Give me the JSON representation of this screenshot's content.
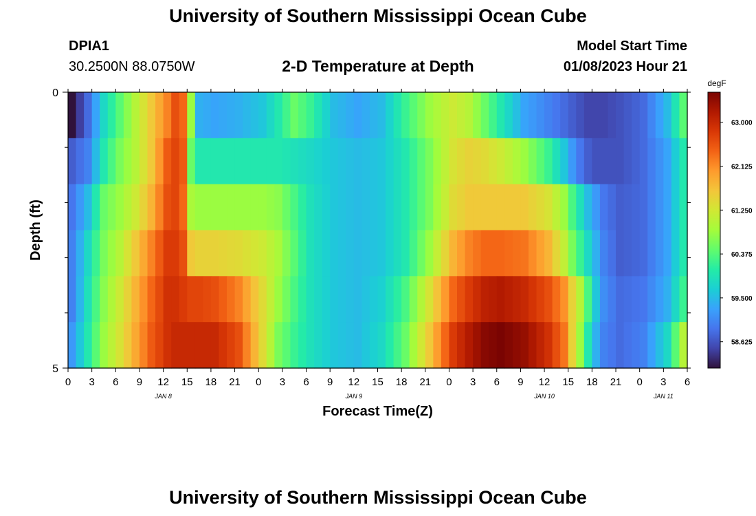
{
  "header": {
    "title": "University of Southern Mississippi Ocean Cube",
    "station_id": "DPIA1",
    "station_coords": "30.2500N  88.0750W",
    "subtitle": "2-D Temperature at Depth",
    "start_label": "Model Start Time",
    "start_value": "01/08/2023 Hour 21"
  },
  "footer": {
    "title": "University of Southern Mississippi Ocean Cube"
  },
  "chart_data": {
    "type": "heatmap",
    "title": "2-D Temperature at Depth",
    "xlabel": "Forecast Time(Z)",
    "ylabel": "Depth (ft)",
    "units": "degF",
    "x_tick_labels": [
      "0",
      "3",
      "6",
      "9",
      "12",
      "15",
      "18",
      "21",
      "0",
      "3",
      "6",
      "9",
      "12",
      "15",
      "18",
      "21",
      "0",
      "3",
      "6",
      "9",
      "12",
      "15",
      "18",
      "21",
      "0",
      "3",
      "6"
    ],
    "day_labels": [
      {
        "label": "JAN 8",
        "hour_index": 12
      },
      {
        "label": "JAN 9",
        "hour_index": 36
      },
      {
        "label": "JAN 10",
        "hour_index": 60
      },
      {
        "label": "JAN 11",
        "hour_index": 75
      }
    ],
    "y_tick_labels": [
      "0",
      "5"
    ],
    "depth_range": [
      0,
      5
    ],
    "depth_rows": [
      0,
      1,
      2,
      3,
      4,
      5
    ],
    "hours": 78,
    "colorbar": {
      "min": 58.1,
      "max": 63.6,
      "labels": [
        "63.000",
        "62.125",
        "61.250",
        "60.375",
        "59.500",
        "58.625"
      ],
      "values": [
        63.0,
        62.125,
        61.25,
        60.375,
        59.5,
        58.625
      ]
    },
    "keypoints": {
      "hours": [
        0,
        2,
        4,
        6,
        8,
        10,
        12,
        13,
        14,
        15,
        16,
        18,
        21,
        24,
        26,
        28,
        30,
        33,
        36,
        39,
        42,
        45,
        48,
        50,
        52,
        54,
        57,
        60,
        62,
        63,
        64,
        65,
        66,
        67,
        69,
        72,
        75,
        77
      ],
      "rows": [
        [
          58.1,
          58.8,
          59.8,
          60.4,
          61.0,
          61.6,
          62.2,
          62.6,
          62.4,
          60.8,
          59.4,
          59.3,
          59.4,
          59.6,
          60.0,
          60.5,
          60.2,
          59.5,
          59.3,
          59.5,
          60.2,
          60.8,
          61.2,
          61.0,
          60.5,
          60.0,
          59.3,
          59.0,
          58.8,
          58.7,
          58.6,
          58.5,
          58.5,
          58.5,
          58.6,
          58.8,
          59.5,
          60.4
        ],
        [
          58.7,
          59.0,
          60.0,
          60.6,
          61.0,
          61.6,
          62.5,
          62.7,
          62.5,
          60.5,
          60.0,
          60.0,
          60.0,
          60.0,
          60.0,
          59.9,
          59.8,
          59.6,
          59.5,
          59.6,
          60.0,
          60.6,
          61.3,
          61.5,
          61.4,
          61.2,
          60.8,
          60.2,
          59.6,
          59.2,
          58.9,
          58.7,
          58.6,
          58.6,
          58.6,
          58.8,
          59.3,
          60.0
        ],
        [
          58.9,
          59.5,
          60.5,
          60.8,
          61.2,
          61.8,
          62.6,
          62.7,
          62.4,
          60.9,
          60.8,
          60.8,
          60.8,
          60.8,
          60.7,
          60.3,
          59.9,
          59.6,
          59.5,
          59.6,
          60.0,
          60.6,
          61.4,
          61.6,
          61.6,
          61.6,
          61.6,
          61.3,
          60.8,
          60.3,
          59.9,
          59.5,
          59.2,
          58.9,
          58.7,
          58.8,
          59.3,
          60.0
        ],
        [
          59.0,
          59.8,
          60.6,
          61.0,
          61.6,
          62.2,
          62.8,
          62.8,
          62.6,
          61.6,
          61.5,
          61.5,
          61.4,
          61.2,
          60.9,
          60.4,
          59.9,
          59.6,
          59.5,
          59.6,
          60.0,
          60.8,
          61.8,
          62.2,
          62.4,
          62.4,
          62.3,
          61.8,
          61.1,
          60.6,
          60.2,
          59.8,
          59.4,
          59.0,
          58.7,
          58.8,
          59.3,
          60.0
        ],
        [
          59.0,
          59.9,
          60.7,
          61.2,
          61.8,
          62.4,
          62.9,
          62.9,
          62.8,
          62.7,
          62.7,
          62.6,
          62.2,
          61.4,
          60.8,
          60.3,
          59.9,
          59.6,
          59.5,
          59.7,
          60.3,
          61.3,
          62.4,
          62.8,
          63.1,
          63.2,
          63.0,
          62.6,
          62.1,
          61.5,
          61.0,
          60.3,
          59.6,
          59.1,
          58.8,
          58.9,
          59.4,
          60.2
        ],
        [
          59.2,
          60.0,
          60.8,
          61.3,
          61.9,
          62.5,
          62.9,
          63.0,
          63.0,
          63.0,
          63.0,
          63.0,
          62.6,
          61.4,
          60.6,
          60.2,
          59.9,
          59.6,
          59.5,
          59.8,
          60.5,
          61.6,
          62.8,
          63.2,
          63.5,
          63.6,
          63.4,
          62.9,
          62.3,
          61.5,
          60.8,
          60.0,
          59.4,
          59.0,
          58.8,
          59.0,
          59.8,
          61.0
        ]
      ]
    }
  },
  "colors": {
    "turbo_stops": [
      "#30123b",
      "#4145ab",
      "#4675ed",
      "#39a2fc",
      "#1bcfd4",
      "#24eca6",
      "#61fc6c",
      "#a4fc3b",
      "#d1e834",
      "#f3c63a",
      "#fe9b2d",
      "#f36315",
      "#d93806",
      "#b11901",
      "#7a0402"
    ]
  }
}
